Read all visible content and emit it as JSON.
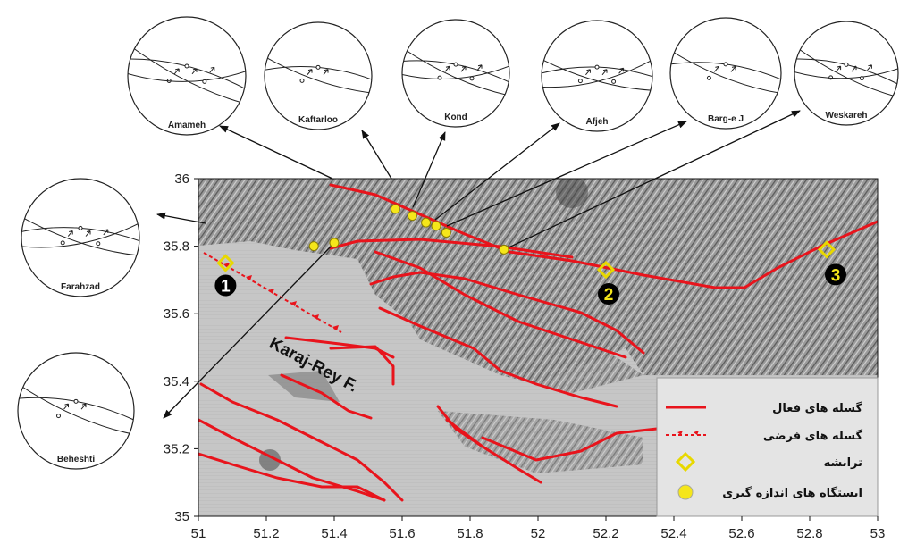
{
  "map": {
    "xlim": [
      51,
      53
    ],
    "ylim": [
      35,
      36
    ],
    "xticks": [
      51,
      51.2,
      51.4,
      51.6,
      51.8,
      52,
      52.2,
      52.4,
      52.6,
      52.8,
      53
    ],
    "yticks": [
      35,
      35.2,
      35.4,
      35.6,
      35.8,
      36
    ],
    "fault_label": "Karaj-Rey F.",
    "sites": [
      {
        "label": "1",
        "lon": 51.08,
        "lat": 35.75
      },
      {
        "label": "2",
        "lon": 52.2,
        "lat": 35.73
      },
      {
        "label": "3",
        "lon": 52.85,
        "lat": 35.79
      }
    ],
    "stations": [
      {
        "lon": 51.34,
        "lat": 35.8
      },
      {
        "lon": 51.4,
        "lat": 35.81
      },
      {
        "lon": 51.58,
        "lat": 35.91
      },
      {
        "lon": 51.63,
        "lat": 35.89
      },
      {
        "lon": 51.67,
        "lat": 35.87
      },
      {
        "lon": 51.7,
        "lat": 35.86
      },
      {
        "lon": 51.73,
        "lat": 35.84
      },
      {
        "lon": 51.9,
        "lat": 35.79
      }
    ],
    "stereonets": [
      "Amameh",
      "Kaftarloo",
      "Kond",
      "Afjeh",
      "Barg-e J",
      "Weskareh",
      "Farahzad",
      "Beheshti"
    ],
    "legend": [
      "گسله های فعال",
      "گسله های فرضی",
      "ترانشه",
      "ایستگاه های اندازه گیری"
    ]
  }
}
